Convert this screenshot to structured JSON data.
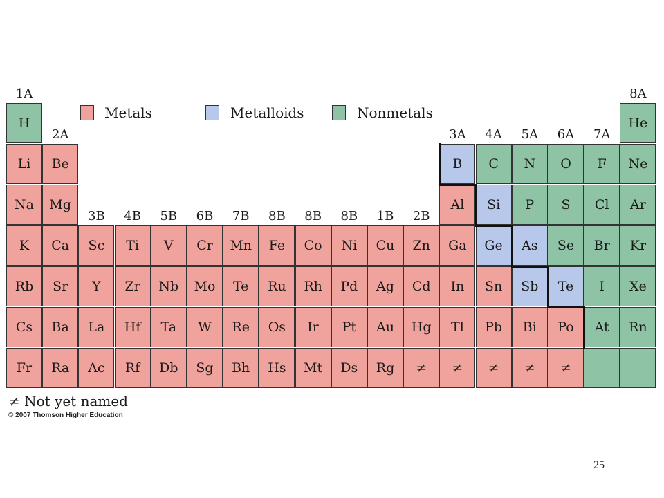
{
  "colors": {
    "metal": "#f0a39c",
    "metalloid": "#b8c8ea",
    "nonmetal": "#8fc3a6"
  },
  "legend": [
    {
      "label": "Metals",
      "type": "metal"
    },
    {
      "label": "Metalloids",
      "type": "metalloid"
    },
    {
      "label": "Nonmetals",
      "type": "nonmetal"
    }
  ],
  "group_labels": [
    {
      "text": "1A",
      "col": 1,
      "row": 1
    },
    {
      "text": "2A",
      "col": 2,
      "row": 2
    },
    {
      "text": "3B",
      "col": 3,
      "row": 4
    },
    {
      "text": "4B",
      "col": 4,
      "row": 4
    },
    {
      "text": "5B",
      "col": 5,
      "row": 4
    },
    {
      "text": "6B",
      "col": 6,
      "row": 4
    },
    {
      "text": "7B",
      "col": 7,
      "row": 4
    },
    {
      "text": "8B",
      "col": 8,
      "row": 4
    },
    {
      "text": "8B",
      "col": 9,
      "row": 4
    },
    {
      "text": "8B",
      "col": 10,
      "row": 4
    },
    {
      "text": "1B",
      "col": 11,
      "row": 4
    },
    {
      "text": "2B",
      "col": 12,
      "row": 4
    },
    {
      "text": "3A",
      "col": 13,
      "row": 2
    },
    {
      "text": "4A",
      "col": 14,
      "row": 2
    },
    {
      "text": "5A",
      "col": 15,
      "row": 2
    },
    {
      "text": "6A",
      "col": 16,
      "row": 2
    },
    {
      "text": "7A",
      "col": 17,
      "row": 2
    },
    {
      "text": "8A",
      "col": 18,
      "row": 1
    }
  ],
  "elements": [
    {
      "s": "H",
      "col": 1,
      "row": 1,
      "t": "nonmetal"
    },
    {
      "s": "He",
      "col": 18,
      "row": 1,
      "t": "nonmetal"
    },
    {
      "s": "Li",
      "col": 1,
      "row": 2,
      "t": "metal"
    },
    {
      "s": "Be",
      "col": 2,
      "row": 2,
      "t": "metal"
    },
    {
      "s": "B",
      "col": 13,
      "row": 2,
      "t": "metalloid"
    },
    {
      "s": "C",
      "col": 14,
      "row": 2,
      "t": "nonmetal"
    },
    {
      "s": "N",
      "col": 15,
      "row": 2,
      "t": "nonmetal"
    },
    {
      "s": "O",
      "col": 16,
      "row": 2,
      "t": "nonmetal"
    },
    {
      "s": "F",
      "col": 17,
      "row": 2,
      "t": "nonmetal"
    },
    {
      "s": "Ne",
      "col": 18,
      "row": 2,
      "t": "nonmetal"
    },
    {
      "s": "Na",
      "col": 1,
      "row": 3,
      "t": "metal"
    },
    {
      "s": "Mg",
      "col": 2,
      "row": 3,
      "t": "metal"
    },
    {
      "s": "Al",
      "col": 13,
      "row": 3,
      "t": "metal"
    },
    {
      "s": "Si",
      "col": 14,
      "row": 3,
      "t": "metalloid"
    },
    {
      "s": "P",
      "col": 15,
      "row": 3,
      "t": "nonmetal"
    },
    {
      "s": "S",
      "col": 16,
      "row": 3,
      "t": "nonmetal"
    },
    {
      "s": "Cl",
      "col": 17,
      "row": 3,
      "t": "nonmetal"
    },
    {
      "s": "Ar",
      "col": 18,
      "row": 3,
      "t": "nonmetal"
    },
    {
      "s": "K",
      "col": 1,
      "row": 4,
      "t": "metal"
    },
    {
      "s": "Ca",
      "col": 2,
      "row": 4,
      "t": "metal"
    },
    {
      "s": "Sc",
      "col": 3,
      "row": 4,
      "t": "metal"
    },
    {
      "s": "Ti",
      "col": 4,
      "row": 4,
      "t": "metal"
    },
    {
      "s": "V",
      "col": 5,
      "row": 4,
      "t": "metal"
    },
    {
      "s": "Cr",
      "col": 6,
      "row": 4,
      "t": "metal"
    },
    {
      "s": "Mn",
      "col": 7,
      "row": 4,
      "t": "metal"
    },
    {
      "s": "Fe",
      "col": 8,
      "row": 4,
      "t": "metal"
    },
    {
      "s": "Co",
      "col": 9,
      "row": 4,
      "t": "metal"
    },
    {
      "s": "Ni",
      "col": 10,
      "row": 4,
      "t": "metal"
    },
    {
      "s": "Cu",
      "col": 11,
      "row": 4,
      "t": "metal"
    },
    {
      "s": "Zn",
      "col": 12,
      "row": 4,
      "t": "metal"
    },
    {
      "s": "Ga",
      "col": 13,
      "row": 4,
      "t": "metal"
    },
    {
      "s": "Ge",
      "col": 14,
      "row": 4,
      "t": "metalloid"
    },
    {
      "s": "As",
      "col": 15,
      "row": 4,
      "t": "metalloid"
    },
    {
      "s": "Se",
      "col": 16,
      "row": 4,
      "t": "nonmetal"
    },
    {
      "s": "Br",
      "col": 17,
      "row": 4,
      "t": "nonmetal"
    },
    {
      "s": "Kr",
      "col": 18,
      "row": 4,
      "t": "nonmetal"
    },
    {
      "s": "Rb",
      "col": 1,
      "row": 5,
      "t": "metal"
    },
    {
      "s": "Sr",
      "col": 2,
      "row": 5,
      "t": "metal"
    },
    {
      "s": "Y",
      "col": 3,
      "row": 5,
      "t": "metal"
    },
    {
      "s": "Zr",
      "col": 4,
      "row": 5,
      "t": "metal"
    },
    {
      "s": "Nb",
      "col": 5,
      "row": 5,
      "t": "metal"
    },
    {
      "s": "Mo",
      "col": 6,
      "row": 5,
      "t": "metal"
    },
    {
      "s": "Te",
      "col": 7,
      "row": 5,
      "t": "metal"
    },
    {
      "s": "Ru",
      "col": 8,
      "row": 5,
      "t": "metal"
    },
    {
      "s": "Rh",
      "col": 9,
      "row": 5,
      "t": "metal"
    },
    {
      "s": "Pd",
      "col": 10,
      "row": 5,
      "t": "metal"
    },
    {
      "s": "Ag",
      "col": 11,
      "row": 5,
      "t": "metal"
    },
    {
      "s": "Cd",
      "col": 12,
      "row": 5,
      "t": "metal"
    },
    {
      "s": "In",
      "col": 13,
      "row": 5,
      "t": "metal"
    },
    {
      "s": "Sn",
      "col": 14,
      "row": 5,
      "t": "metal"
    },
    {
      "s": "Sb",
      "col": 15,
      "row": 5,
      "t": "metalloid"
    },
    {
      "s": "Te",
      "col": 16,
      "row": 5,
      "t": "metalloid"
    },
    {
      "s": "I",
      "col": 17,
      "row": 5,
      "t": "nonmetal"
    },
    {
      "s": "Xe",
      "col": 18,
      "row": 5,
      "t": "nonmetal"
    },
    {
      "s": "Cs",
      "col": 1,
      "row": 6,
      "t": "metal"
    },
    {
      "s": "Ba",
      "col": 2,
      "row": 6,
      "t": "metal"
    },
    {
      "s": "La",
      "col": 3,
      "row": 6,
      "t": "metal"
    },
    {
      "s": "Hf",
      "col": 4,
      "row": 6,
      "t": "metal"
    },
    {
      "s": "Ta",
      "col": 5,
      "row": 6,
      "t": "metal"
    },
    {
      "s": "W",
      "col": 6,
      "row": 6,
      "t": "metal"
    },
    {
      "s": "Re",
      "col": 7,
      "row": 6,
      "t": "metal"
    },
    {
      "s": "Os",
      "col": 8,
      "row": 6,
      "t": "metal"
    },
    {
      "s": "Ir",
      "col": 9,
      "row": 6,
      "t": "metal"
    },
    {
      "s": "Pt",
      "col": 10,
      "row": 6,
      "t": "metal"
    },
    {
      "s": "Au",
      "col": 11,
      "row": 6,
      "t": "metal"
    },
    {
      "s": "Hg",
      "col": 12,
      "row": 6,
      "t": "metal"
    },
    {
      "s": "Tl",
      "col": 13,
      "row": 6,
      "t": "metal"
    },
    {
      "s": "Pb",
      "col": 14,
      "row": 6,
      "t": "metal"
    },
    {
      "s": "Bi",
      "col": 15,
      "row": 6,
      "t": "metal"
    },
    {
      "s": "Po",
      "col": 16,
      "row": 6,
      "t": "metal"
    },
    {
      "s": "At",
      "col": 17,
      "row": 6,
      "t": "nonmetal"
    },
    {
      "s": "Rn",
      "col": 18,
      "row": 6,
      "t": "nonmetal"
    },
    {
      "s": "Fr",
      "col": 1,
      "row": 7,
      "t": "metal"
    },
    {
      "s": "Ra",
      "col": 2,
      "row": 7,
      "t": "metal"
    },
    {
      "s": "Ac",
      "col": 3,
      "row": 7,
      "t": "metal"
    },
    {
      "s": "Rf",
      "col": 4,
      "row": 7,
      "t": "metal"
    },
    {
      "s": "Db",
      "col": 5,
      "row": 7,
      "t": "metal"
    },
    {
      "s": "Sg",
      "col": 6,
      "row": 7,
      "t": "metal"
    },
    {
      "s": "Bh",
      "col": 7,
      "row": 7,
      "t": "metal"
    },
    {
      "s": "Hs",
      "col": 8,
      "row": 7,
      "t": "metal"
    },
    {
      "s": "Mt",
      "col": 9,
      "row": 7,
      "t": "metal"
    },
    {
      "s": "Ds",
      "col": 10,
      "row": 7,
      "t": "metal"
    },
    {
      "s": "Rg",
      "col": 11,
      "row": 7,
      "t": "metal"
    },
    {
      "s": "≠",
      "col": 12,
      "row": 7,
      "t": "metal"
    },
    {
      "s": "≠",
      "col": 13,
      "row": 7,
      "t": "metal"
    },
    {
      "s": "≠",
      "col": 14,
      "row": 7,
      "t": "metal"
    },
    {
      "s": "≠",
      "col": 15,
      "row": 7,
      "t": "metal"
    },
    {
      "s": "≠",
      "col": 16,
      "row": 7,
      "t": "metal"
    },
    {
      "s": "",
      "col": 17,
      "row": 7,
      "t": "nonmetal"
    },
    {
      "s": "",
      "col": 18,
      "row": 7,
      "t": "nonmetal"
    }
  ],
  "footnote": "≠  Not yet named",
  "copyright": "© 2007 Thomson Higher Education",
  "page_number": "25"
}
